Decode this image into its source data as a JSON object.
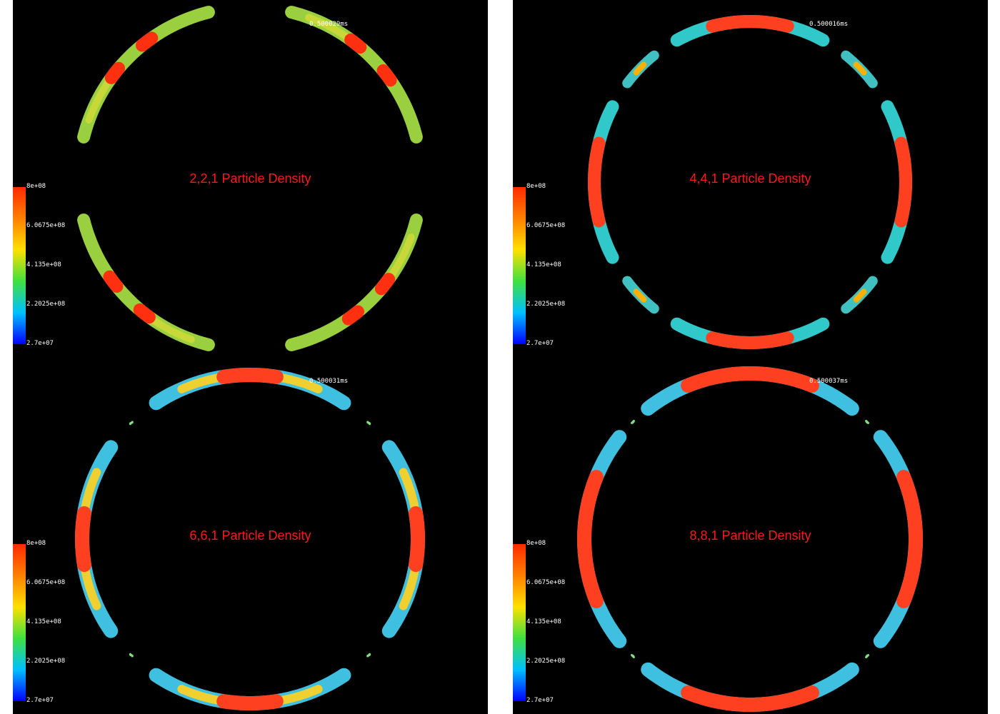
{
  "panels": [
    {
      "label": "2,2,1 Particle Density",
      "time": "0.500029ms",
      "colorbar": [
        "8e+08",
        "6.0675e+08",
        "4.135e+08",
        "2.2025e+08",
        "2.7e+07"
      ]
    },
    {
      "label": "4,4,1 Particle Density",
      "time": "0.500016ms",
      "colorbar": [
        "8e+08",
        "6.0675e+08",
        "4.135e+08",
        "2.2025e+08",
        "2.7e+07"
      ]
    },
    {
      "label": "6,6,1 Particle Density",
      "time": "0.500031ms",
      "colorbar": [
        "8e+08",
        "6.0675e+08",
        "4.135e+08",
        "2.2025e+08",
        "2.7e+07"
      ]
    },
    {
      "label": "8,8,1 Particle Density",
      "time": "0.500037ms",
      "colorbar": [
        "8e+08",
        "6.0675e+08",
        "4.135e+08",
        "2.2025e+08",
        "2.7e+07"
      ]
    }
  ]
}
